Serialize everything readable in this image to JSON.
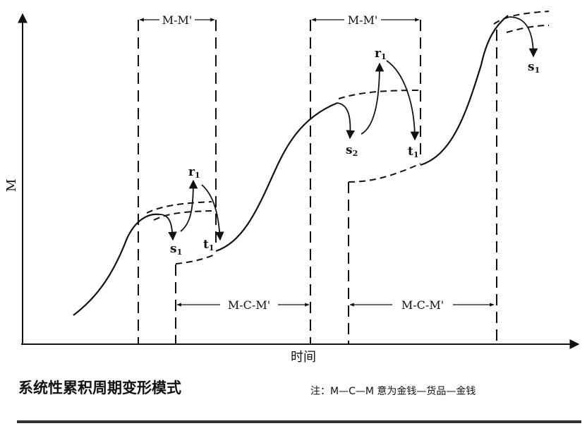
{
  "axes": {
    "y_label": "M",
    "x_label": "时间"
  },
  "intervals": {
    "top": "M-M'",
    "bottom": "M-C-M'"
  },
  "arrow_labels": {
    "s1_a": "s",
    "s1_a_sub": "1",
    "r1_a": "r",
    "r1_a_sub": "1",
    "t1_a": "t",
    "t1_a_sub": "1",
    "s2": "s",
    "s2_sub": "2",
    "r1_b": "r",
    "r1_b_sub": "1",
    "t1_b": "t",
    "t1_b_sub": "1",
    "s1_b": "s",
    "s1_b_sub": "1"
  },
  "caption": {
    "title": "系统性累积周期变形模式",
    "note": "注：M—C—M 意为金钱—货品—金钱"
  }
}
